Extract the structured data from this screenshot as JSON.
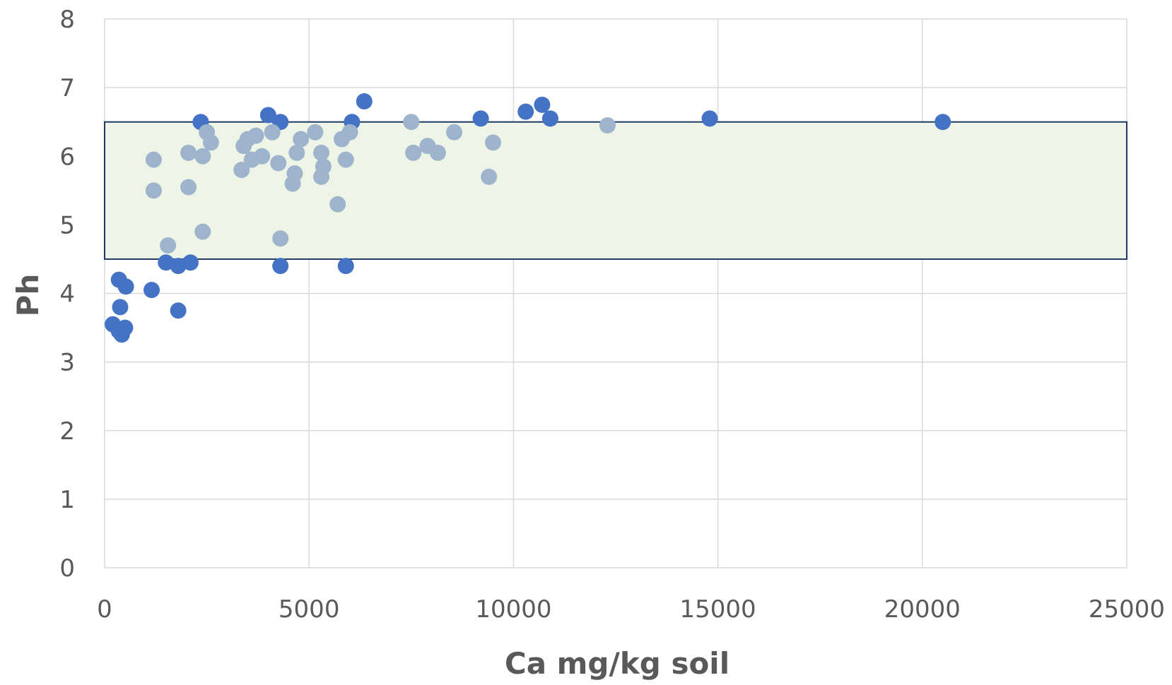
{
  "chart_data": {
    "type": "scatter",
    "title": "",
    "xlabel": "Ca mg/kg soil",
    "ylabel": "Ph",
    "xlim": [
      0,
      25000
    ],
    "ylim": [
      0,
      8
    ],
    "x_ticks": [
      0,
      5000,
      10000,
      15000,
      20000,
      25000
    ],
    "y_ticks": [
      0,
      1,
      2,
      3,
      4,
      5,
      6,
      7,
      8
    ],
    "x_tick_labels": [
      "0",
      "5000",
      "10000",
      "15000",
      "20000",
      "25000"
    ],
    "y_tick_labels": [
      "0",
      "1",
      "2",
      "3",
      "4",
      "5",
      "6",
      "7",
      "8"
    ],
    "grid": true,
    "legend": "none",
    "optimal_band": {
      "y_range": [
        4.5,
        6.5
      ],
      "x_range": [
        0,
        25000
      ],
      "fill_color": "#eef4e6",
      "border_color": "#1f3864"
    },
    "series": [
      {
        "color": "#4472c4",
        "points": [
          [
            200,
            3.55
          ],
          [
            350,
            3.45
          ],
          [
            420,
            3.4
          ],
          [
            500,
            3.5
          ],
          [
            380,
            3.8
          ],
          [
            350,
            4.2
          ],
          [
            520,
            4.1
          ],
          [
            1150,
            4.05
          ],
          [
            1500,
            4.45
          ],
          [
            1800,
            4.4
          ],
          [
            2100,
            4.45
          ],
          [
            1800,
            3.75
          ],
          [
            2350,
            6.5
          ],
          [
            4000,
            6.6
          ],
          [
            4300,
            6.5
          ],
          [
            4300,
            4.4
          ],
          [
            5900,
            4.4
          ],
          [
            6050,
            6.5
          ],
          [
            6350,
            6.8
          ],
          [
            9200,
            6.55
          ],
          [
            10300,
            6.65
          ],
          [
            10700,
            6.75
          ],
          [
            10900,
            6.55
          ],
          [
            14800,
            6.55
          ],
          [
            20500,
            6.5
          ]
        ]
      },
      {
        "color": "#9db4cc",
        "points": [
          [
            1200,
            5.95
          ],
          [
            1200,
            5.5
          ],
          [
            1550,
            4.7
          ],
          [
            2050,
            6.05
          ],
          [
            2050,
            5.55
          ],
          [
            2400,
            6.0
          ],
          [
            2400,
            4.9
          ],
          [
            2500,
            6.35
          ],
          [
            2600,
            6.2
          ],
          [
            3350,
            5.8
          ],
          [
            3400,
            6.15
          ],
          [
            3500,
            6.25
          ],
          [
            3600,
            5.95
          ],
          [
            3700,
            6.3
          ],
          [
            3850,
            6.0
          ],
          [
            4100,
            6.35
          ],
          [
            4250,
            5.9
          ],
          [
            4300,
            4.8
          ],
          [
            4600,
            5.6
          ],
          [
            4650,
            5.75
          ],
          [
            4700,
            6.05
          ],
          [
            4800,
            6.25
          ],
          [
            5150,
            6.35
          ],
          [
            5300,
            6.05
          ],
          [
            5300,
            5.7
          ],
          [
            5350,
            5.85
          ],
          [
            5700,
            5.3
          ],
          [
            5800,
            6.25
          ],
          [
            5900,
            5.95
          ],
          [
            6000,
            6.35
          ],
          [
            7500,
            6.5
          ],
          [
            7550,
            6.05
          ],
          [
            7900,
            6.15
          ],
          [
            8150,
            6.05
          ],
          [
            8550,
            6.35
          ],
          [
            9400,
            5.7
          ],
          [
            9500,
            6.2
          ],
          [
            12300,
            6.45
          ]
        ]
      }
    ]
  }
}
